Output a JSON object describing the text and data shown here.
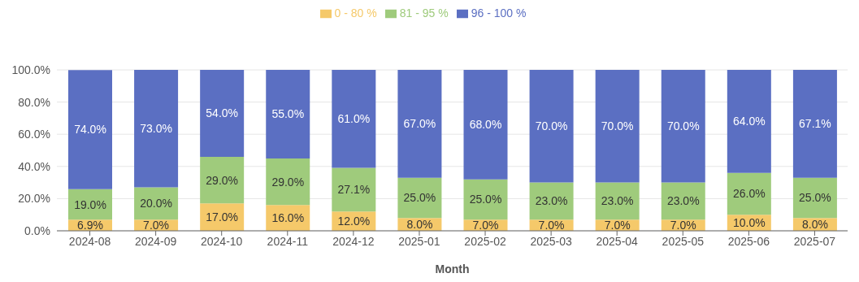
{
  "chart_data": {
    "type": "bar",
    "stacked": true,
    "xlabel": "Month",
    "categories": [
      "2024-08",
      "2024-09",
      "2024-10",
      "2024-11",
      "2024-12",
      "2025-01",
      "2025-02",
      "2025-03",
      "2025-04",
      "2025-05",
      "2025-06",
      "2025-07"
    ],
    "series": [
      {
        "name": "0 - 80 %",
        "color": "#f5c96a",
        "values": [
          6.9,
          7.0,
          17.0,
          16.0,
          12.0,
          8.0,
          7.0,
          7.0,
          7.0,
          7.0,
          10.0,
          8.0
        ],
        "value_labels": [
          "6.9%",
          "7.0%",
          "17.0%",
          "16.0%",
          "12.0%",
          "8.0%",
          "7.0%",
          "7.0%",
          "7.0%",
          "7.0%",
          "10.0%",
          "8.0%"
        ]
      },
      {
        "name": "81 - 95 %",
        "color": "#9fcb7c",
        "values": [
          19.0,
          20.0,
          29.0,
          29.0,
          27.1,
          25.0,
          25.0,
          23.0,
          23.0,
          23.0,
          26.0,
          25.0
        ],
        "value_labels": [
          "19.0%",
          "20.0%",
          "29.0%",
          "29.0%",
          "27.1%",
          "25.0%",
          "25.0%",
          "23.0%",
          "23.0%",
          "23.0%",
          "26.0%",
          "25.0%"
        ]
      },
      {
        "name": "96 - 100 %",
        "color": "#5b6fc2",
        "values": [
          74.0,
          73.0,
          54.0,
          55.0,
          61.0,
          67.0,
          68.0,
          70.0,
          70.0,
          70.0,
          64.0,
          67.1
        ],
        "value_labels": [
          "74.0%",
          "73.0%",
          "54.0%",
          "55.0%",
          "61.0%",
          "67.0%",
          "68.0%",
          "70.0%",
          "70.0%",
          "70.0%",
          "64.0%",
          "67.1%"
        ]
      }
    ],
    "ylim": [
      0,
      100
    ],
    "yticks": [
      {
        "value": 0,
        "label": "0.0%"
      },
      {
        "value": 20,
        "label": "20.0%"
      },
      {
        "value": 40,
        "label": "40.0%"
      },
      {
        "value": 60,
        "label": "60.0%"
      },
      {
        "value": 80,
        "label": "80.0%"
      },
      {
        "value": 100,
        "label": "100.0%"
      }
    ],
    "grid": "y",
    "legend": "top"
  }
}
